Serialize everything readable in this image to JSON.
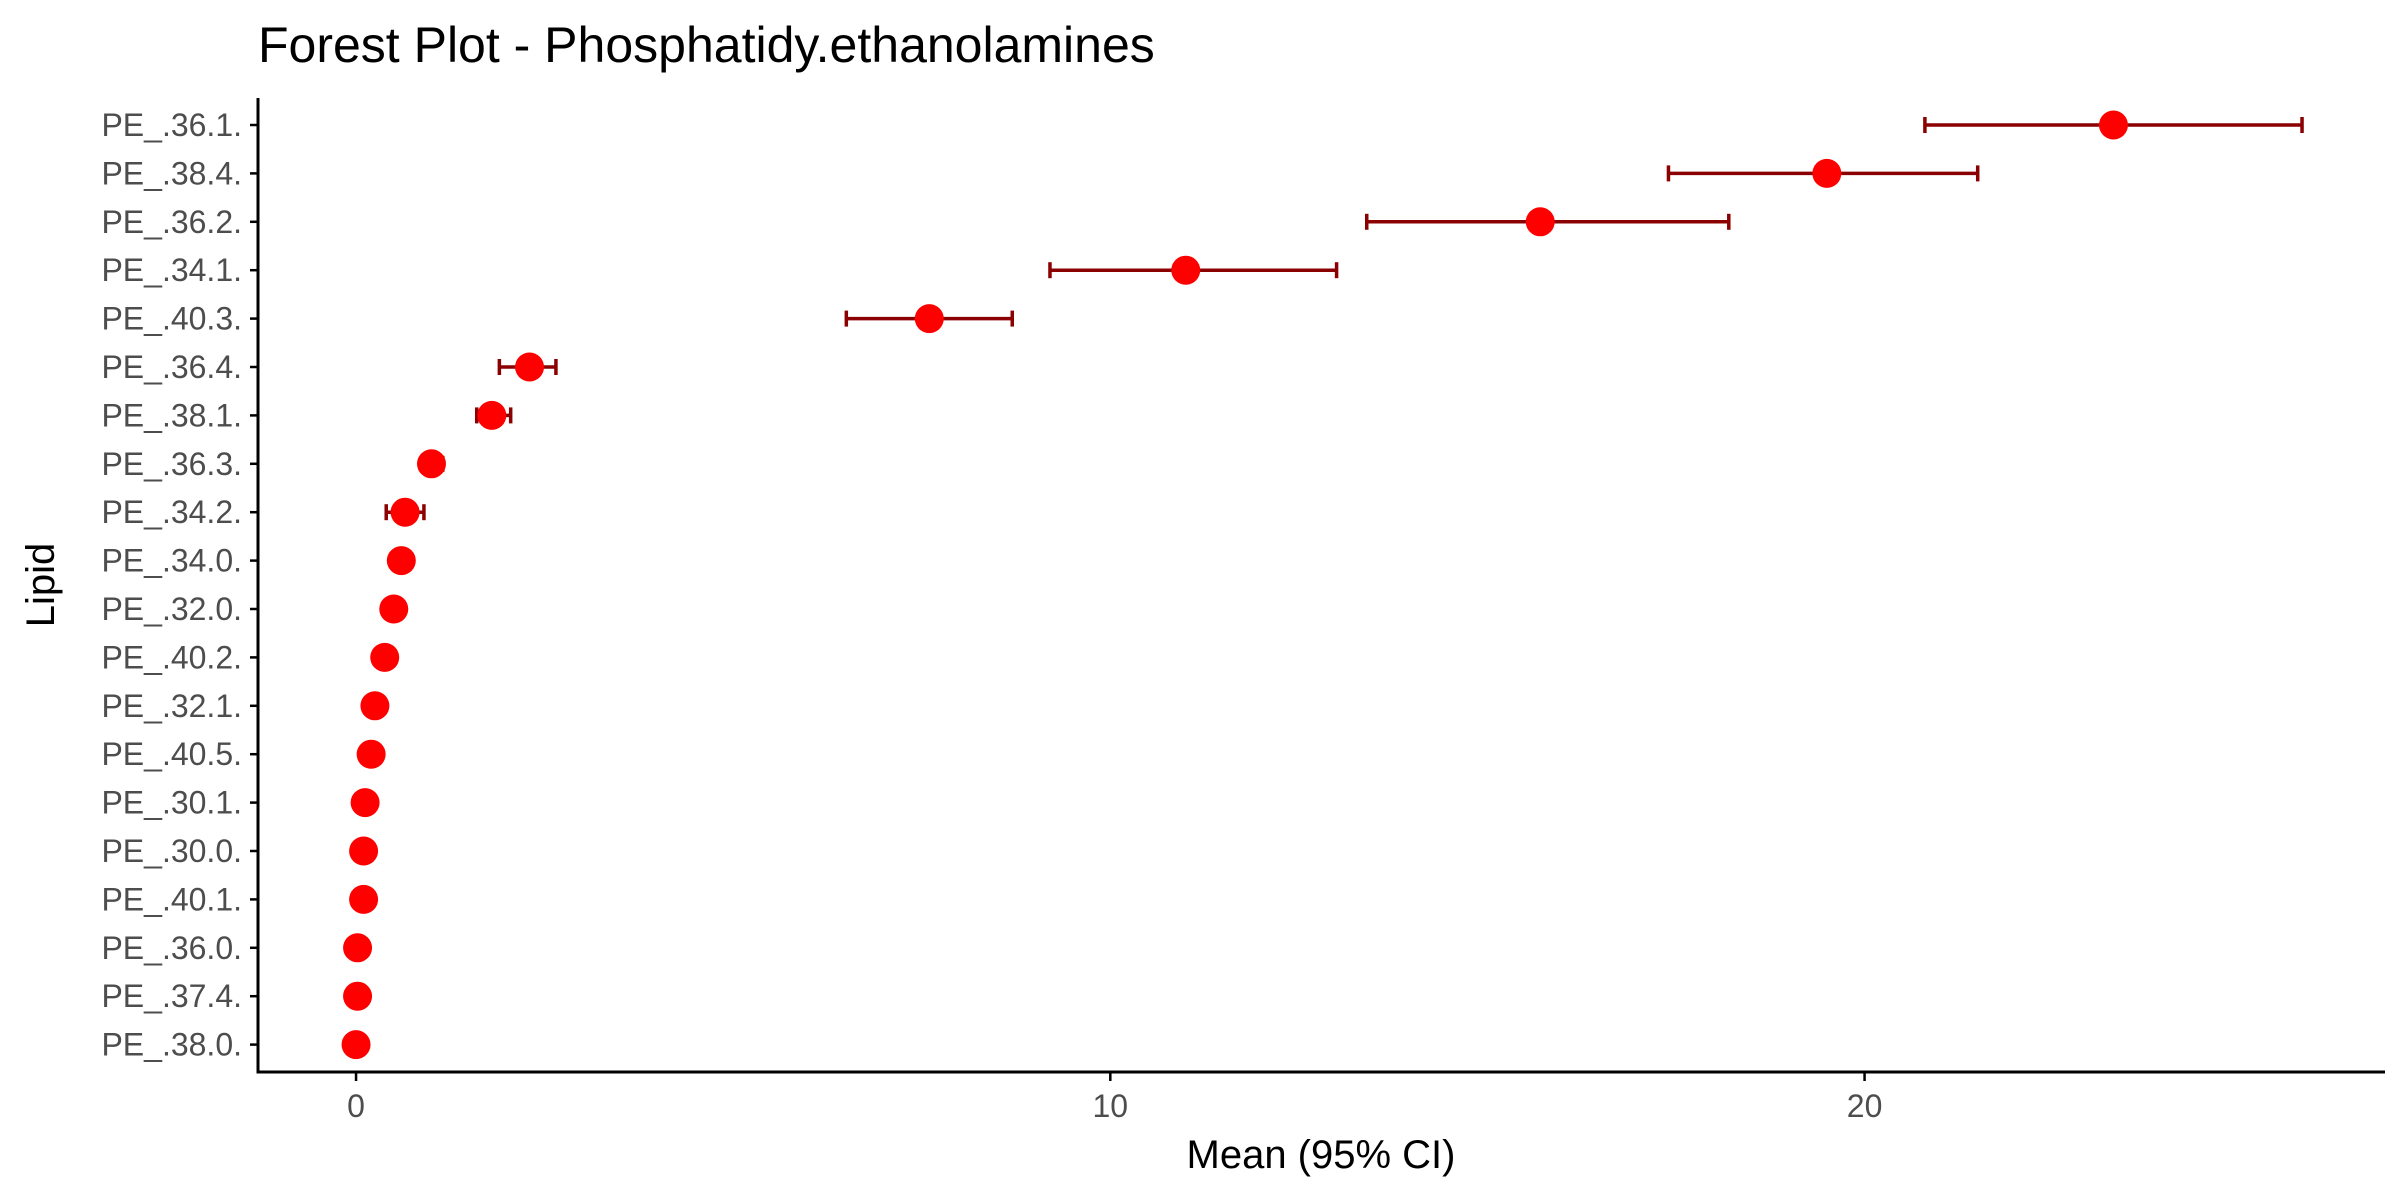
{
  "chart_data": {
    "type": "scatter",
    "subtype": "forest",
    "title": "Forest Plot - Phosphatidy.ethanolamines",
    "xlabel": "Mean (95% CI)",
    "ylabel": "Lipid",
    "xlim": [
      -1.3,
      26.9
    ],
    "x_ticks": [
      0,
      10,
      20
    ],
    "grid": false,
    "legend": "none",
    "point_color": "#ff0000",
    "ci_color": "#8b0000",
    "categories": [
      "PE_.36.1.",
      "PE_.38.4.",
      "PE_.36.2.",
      "PE_.34.1.",
      "PE_.40.3.",
      "PE_.36.4.",
      "PE_.38.1.",
      "PE_.36.3.",
      "PE_.34.2.",
      "PE_.34.0.",
      "PE_.32.0.",
      "PE_.40.2.",
      "PE_.32.1.",
      "PE_.40.5.",
      "PE_.30.1.",
      "PE_.30.0.",
      "PE_.40.1.",
      "PE_.36.0.",
      "PE_.37.4.",
      "PE_.38.0."
    ],
    "mean": [
      23.3,
      19.5,
      15.7,
      11.0,
      7.6,
      2.3,
      1.8,
      1.0,
      0.65,
      0.6,
      0.5,
      0.38,
      0.25,
      0.2,
      0.12,
      0.1,
      0.1,
      0.02,
      0.02,
      0.0
    ],
    "lower": [
      20.8,
      17.4,
      13.4,
      9.2,
      6.5,
      1.9,
      1.6,
      0.9,
      0.4,
      0.5,
      0.45,
      0.3,
      0.15,
      0.15,
      0.08,
      0.07,
      0.07,
      0.0,
      0.0,
      -0.02
    ],
    "upper": [
      25.8,
      21.5,
      18.2,
      13.0,
      8.7,
      2.65,
      2.05,
      1.15,
      0.9,
      0.7,
      0.6,
      0.45,
      0.35,
      0.25,
      0.16,
      0.13,
      0.13,
      0.04,
      0.04,
      0.02
    ]
  }
}
